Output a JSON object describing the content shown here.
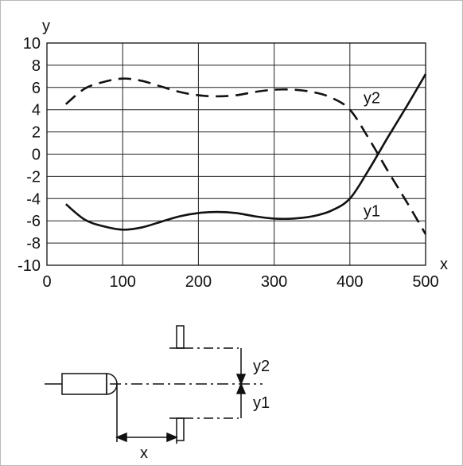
{
  "chart_data": {
    "type": "line",
    "xlabel": "x",
    "ylabel": "y",
    "xlim": [
      0,
      500
    ],
    "ylim": [
      -10,
      10
    ],
    "xticks": [
      0,
      100,
      200,
      300,
      400,
      500
    ],
    "yticks": [
      -10,
      -8,
      -6,
      -4,
      -2,
      0,
      2,
      4,
      6,
      8,
      10
    ],
    "grid": true,
    "series": [
      {
        "name": "y1",
        "style": "solid",
        "points": [
          [
            25,
            -4.5
          ],
          [
            50,
            -5.9
          ],
          [
            75,
            -6.5
          ],
          [
            100,
            -6.8
          ],
          [
            125,
            -6.6
          ],
          [
            150,
            -6.1
          ],
          [
            175,
            -5.6
          ],
          [
            200,
            -5.3
          ],
          [
            225,
            -5.2
          ],
          [
            250,
            -5.3
          ],
          [
            275,
            -5.6
          ],
          [
            300,
            -5.8
          ],
          [
            325,
            -5.8
          ],
          [
            350,
            -5.6
          ],
          [
            375,
            -5.1
          ],
          [
            400,
            -4.0
          ],
          [
            425,
            -1.4
          ],
          [
            450,
            1.5
          ],
          [
            475,
            4.3
          ],
          [
            500,
            7.2
          ]
        ]
      },
      {
        "name": "y2",
        "style": "dashed",
        "points": [
          [
            25,
            4.5
          ],
          [
            50,
            5.9
          ],
          [
            75,
            6.5
          ],
          [
            100,
            6.8
          ],
          [
            125,
            6.6
          ],
          [
            150,
            6.1
          ],
          [
            175,
            5.6
          ],
          [
            200,
            5.3
          ],
          [
            225,
            5.2
          ],
          [
            250,
            5.3
          ],
          [
            275,
            5.6
          ],
          [
            300,
            5.8
          ],
          [
            325,
            5.8
          ],
          [
            350,
            5.6
          ],
          [
            375,
            5.1
          ],
          [
            400,
            4.0
          ],
          [
            425,
            1.4
          ],
          [
            450,
            -1.5
          ],
          [
            475,
            -4.3
          ],
          [
            500,
            -7.2
          ]
        ]
      }
    ]
  },
  "diagram": {
    "labels": {
      "y2": "y2",
      "y1": "y1",
      "x": "x"
    }
  }
}
